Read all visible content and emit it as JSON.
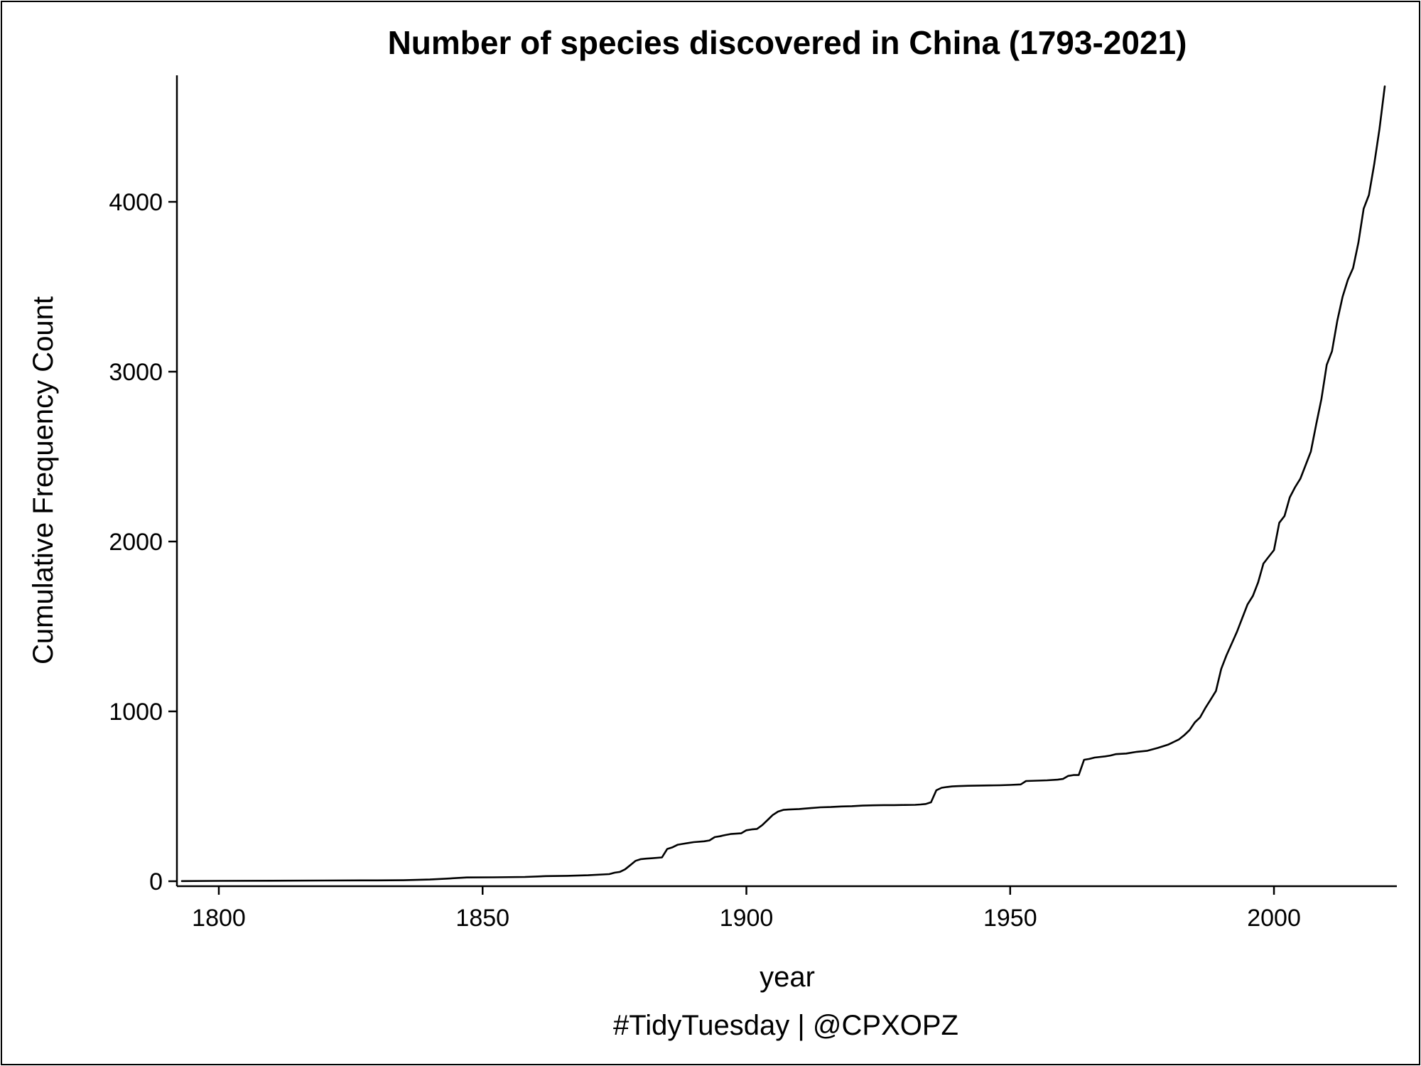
{
  "chart_data": {
    "type": "line",
    "title": "Number of species discovered in China (1793-2021)",
    "xlabel": "year",
    "ylabel": "Cumulative Frequency Count",
    "caption": "#TidyTuesday | @CPXOPZ",
    "xlim": [
      1793,
      2022
    ],
    "ylim": [
      -30,
      4700
    ],
    "xticks": [
      1800,
      1850,
      1900,
      1950,
      2000
    ],
    "yticks": [
      0,
      1000,
      2000,
      3000,
      4000
    ],
    "grid": false,
    "legend": "none",
    "line_color": "#000000",
    "series": [
      {
        "x": [
          1793,
          1800,
          1810,
          1820,
          1830,
          1835,
          1840,
          1843,
          1847,
          1852,
          1858,
          1862,
          1866,
          1870,
          1874,
          1875,
          1876,
          1877,
          1878,
          1879,
          1880,
          1881,
          1882,
          1884,
          1885,
          1886,
          1887,
          1888,
          1889,
          1890,
          1892,
          1893,
          1894,
          1895,
          1896,
          1897,
          1898,
          1899,
          1900,
          1901,
          1902,
          1903,
          1904,
          1905,
          1906,
          1907,
          1908,
          1910,
          1912,
          1914,
          1916,
          1918,
          1920,
          1922,
          1924,
          1926,
          1928,
          1930,
          1932,
          1933,
          1934,
          1935,
          1936,
          1937,
          1938,
          1939,
          1940,
          1942,
          1944,
          1946,
          1948,
          1950,
          1952,
          1953,
          1955,
          1957,
          1959,
          1960,
          1961,
          1962,
          1963,
          1964,
          1965,
          1966,
          1968,
          1969,
          1970,
          1972,
          1974,
          1976,
          1978,
          1979,
          1980,
          1981,
          1982,
          1983,
          1984,
          1985,
          1986,
          1987,
          1988,
          1989,
          1990,
          1991,
          1992,
          1993,
          1994,
          1995,
          1996,
          1997,
          1998,
          1999,
          2000,
          2001,
          2002,
          2003,
          2004,
          2005,
          2006,
          2007,
          2008,
          2009,
          2010,
          2011,
          2012,
          2013,
          2014,
          2015,
          2016,
          2017,
          2018,
          2019,
          2020,
          2021
        ],
        "y": [
          1,
          2,
          3,
          4,
          5,
          6,
          10,
          15,
          22,
          23,
          25,
          30,
          32,
          35,
          42,
          50,
          55,
          70,
          95,
          120,
          130,
          133,
          135,
          140,
          190,
          200,
          215,
          220,
          225,
          230,
          235,
          240,
          260,
          265,
          272,
          278,
          280,
          282,
          300,
          305,
          308,
          330,
          360,
          390,
          410,
          420,
          422,
          425,
          430,
          435,
          437,
          440,
          442,
          445,
          447,
          448,
          448,
          449,
          450,
          452,
          455,
          465,
          535,
          550,
          555,
          558,
          560,
          562,
          563,
          564,
          565,
          567,
          570,
          590,
          592,
          594,
          598,
          602,
          620,
          625,
          625,
          715,
          720,
          728,
          735,
          740,
          748,
          752,
          762,
          768,
          785,
          795,
          805,
          820,
          835,
          860,
          890,
          935,
          965,
          1020,
          1070,
          1120,
          1250,
          1330,
          1400,
          1470,
          1550,
          1630,
          1680,
          1760,
          1870,
          1910,
          1950,
          2110,
          2150,
          2260,
          2320,
          2370,
          2450,
          2530,
          2690,
          2840,
          3040,
          3120,
          3300,
          3440,
          3540,
          3610,
          3760,
          3960,
          4040,
          4220,
          4430,
          4680
        ]
      }
    ]
  }
}
